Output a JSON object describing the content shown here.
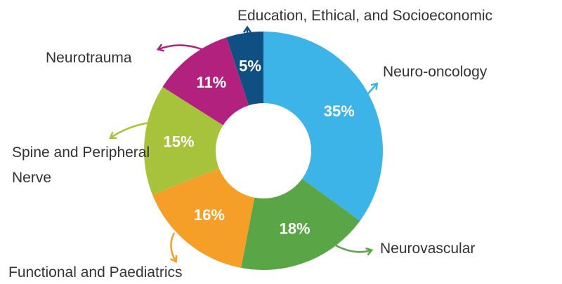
{
  "chart_data": {
    "type": "donut",
    "categories": [
      "Neuro-oncology",
      "Neurovascular",
      "Functional and Paediatrics",
      "Spine and Peripheral Nerve",
      "Neurotrauma",
      "Education, Ethical, and Socioeconomic"
    ],
    "values": [
      35,
      18,
      16,
      15,
      11,
      5
    ],
    "value_labels": [
      "35%",
      "18%",
      "16%",
      "15%",
      "11%",
      "5%"
    ],
    "colors": [
      "#3db4e7",
      "#5aa646",
      "#f59e28",
      "#a7c33b",
      "#b3217f",
      "#0f4f82"
    ]
  }
}
